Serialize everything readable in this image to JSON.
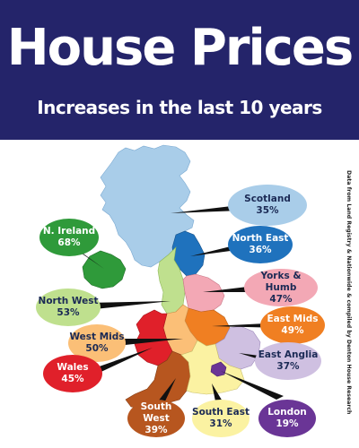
{
  "title": "House Prices",
  "subtitle": "Increases in the last 10 years",
  "source_note": "Data from Land Registry & Nationwide & compiled by Denton House Research",
  "regions": [
    {
      "key": "scotland",
      "name": "Scotland",
      "value": "35%",
      "fill": "#a9cde9",
      "bubble": "#a9cde9",
      "text": "#1b2a55"
    },
    {
      "key": "n_ireland",
      "name": "N. Ireland",
      "value": "68%",
      "fill": "#2f9a3a",
      "bubble": "#2f9a3a",
      "text": "#ffffff"
    },
    {
      "key": "north_east",
      "name": "North East",
      "value": "36%",
      "fill": "#1f72bd",
      "bubble": "#1f72bd",
      "text": "#ffffff"
    },
    {
      "key": "yorks_humb",
      "name": "Yorks & Humb",
      "value": "47%",
      "fill": "#f3a8b5",
      "bubble": "#f3a8b5",
      "text": "#1b2a55"
    },
    {
      "key": "north_west",
      "name": "North West",
      "value": "53%",
      "fill": "#bfe08e",
      "bubble": "#bfe08e",
      "text": "#1b2a55"
    },
    {
      "key": "east_mids",
      "name": "East Mids",
      "value": "49%",
      "fill": "#f07f22",
      "bubble": "#f07f22",
      "text": "#ffffff"
    },
    {
      "key": "west_mids",
      "name": "West Mids",
      "value": "50%",
      "fill": "#fbbf77",
      "bubble": "#fbbf77",
      "text": "#1b2a55"
    },
    {
      "key": "east_anglia",
      "name": "East Anglia",
      "value": "37%",
      "fill": "#cfc0e1",
      "bubble": "#cfc0e1",
      "text": "#1b2a55"
    },
    {
      "key": "wales",
      "name": "Wales",
      "value": "45%",
      "fill": "#e0202a",
      "bubble": "#e0202a",
      "text": "#ffffff"
    },
    {
      "key": "south_west",
      "name": "South West",
      "value": "39%",
      "fill": "#b7561f",
      "bubble": "#b7561f",
      "text": "#ffffff"
    },
    {
      "key": "south_east",
      "name": "South East",
      "value": "31%",
      "fill": "#fbf2a2",
      "bubble": "#fbf2a2",
      "text": "#1b2a55"
    },
    {
      "key": "london",
      "name": "London",
      "value": "19%",
      "fill": "#6a3596",
      "bubble": "#6a3596",
      "text": "#ffffff"
    }
  ]
}
